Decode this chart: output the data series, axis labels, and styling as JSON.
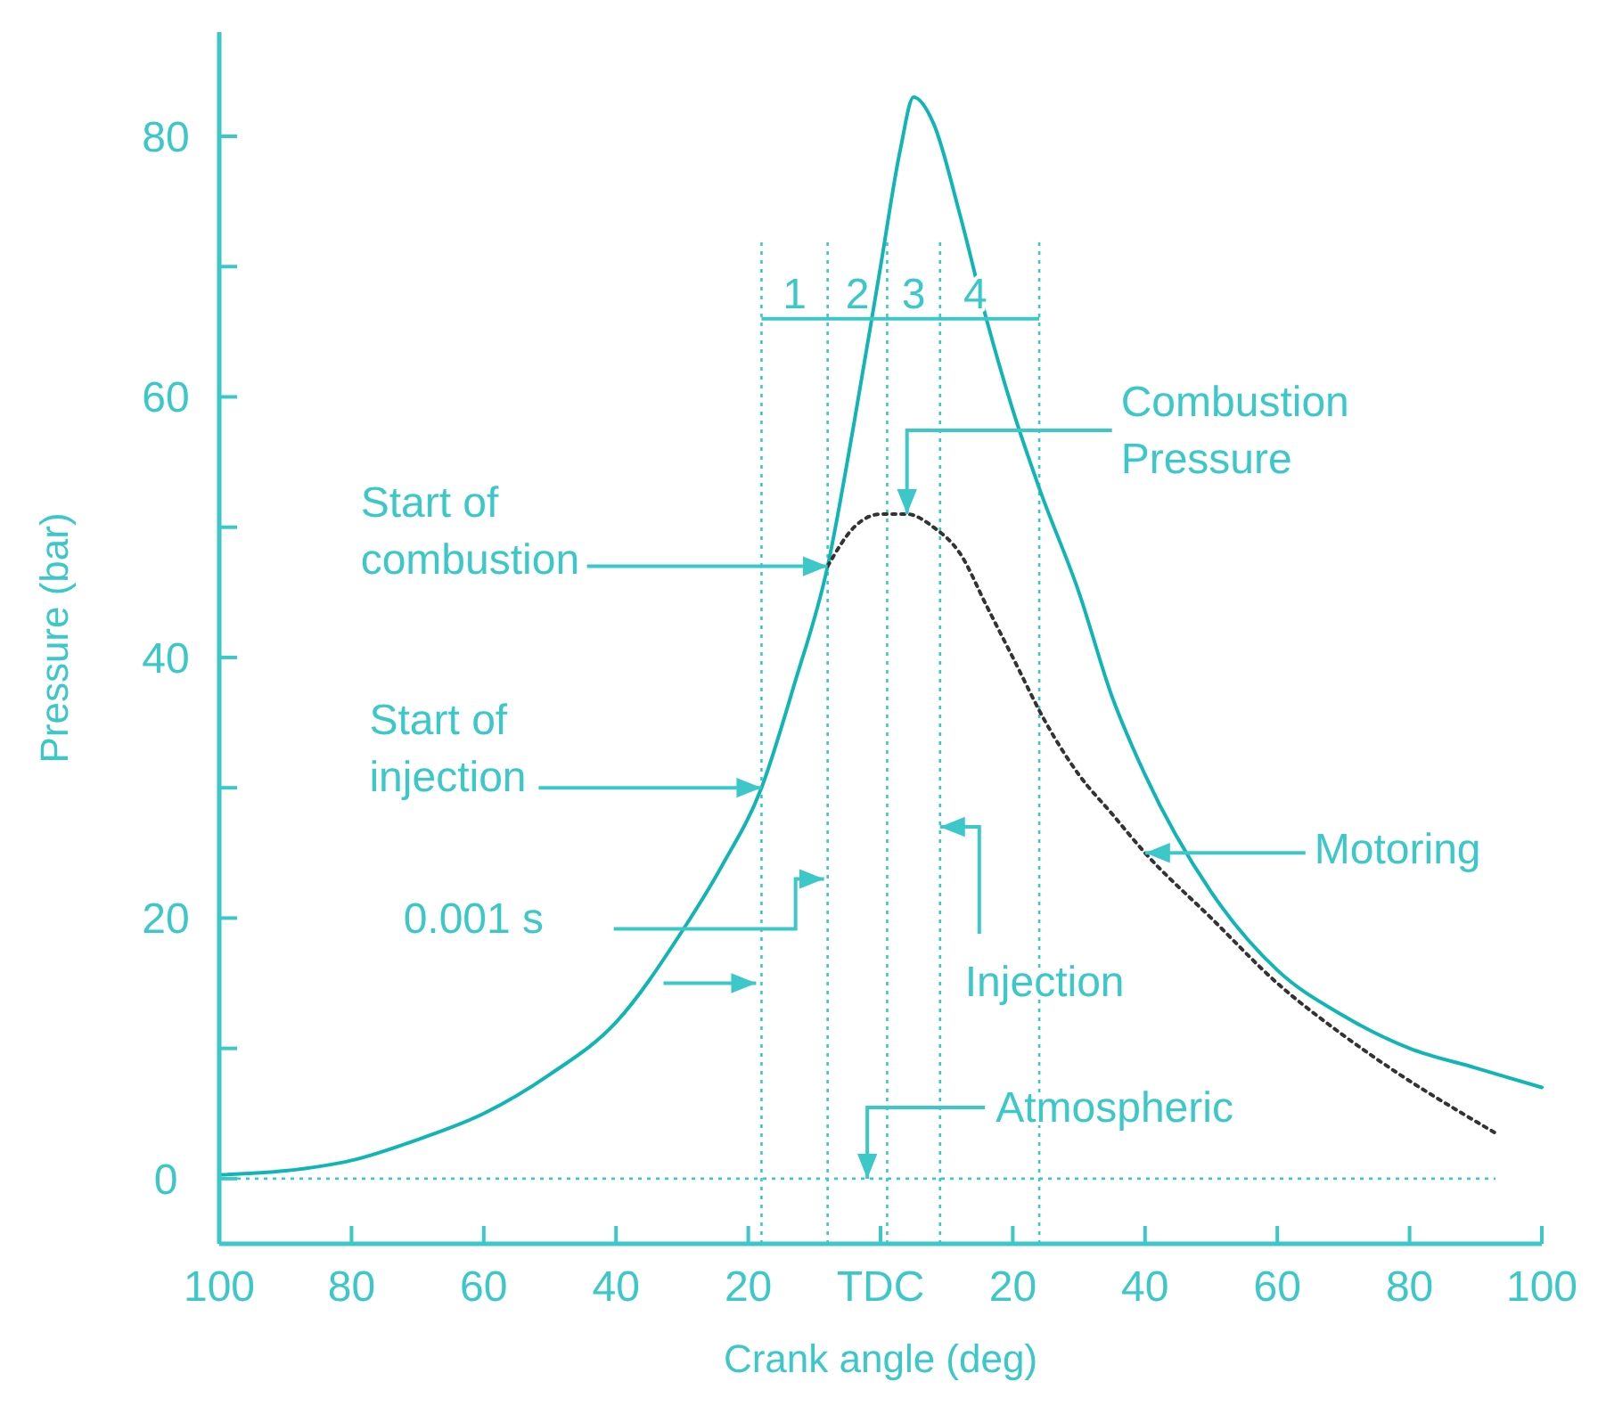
{
  "chart_data": {
    "type": "line",
    "xlabel": "Crank angle (deg)",
    "ylabel": "Pressure (bar)",
    "xlim": [
      -100,
      100
    ],
    "ylim": [
      -5,
      88
    ],
    "xticks": [
      {
        "value": -100,
        "label": "100"
      },
      {
        "value": -80,
        "label": "80"
      },
      {
        "value": -60,
        "label": "60"
      },
      {
        "value": -40,
        "label": "40"
      },
      {
        "value": -20,
        "label": "20"
      },
      {
        "value": 0,
        "label": "TDC"
      },
      {
        "value": 20,
        "label": "20"
      },
      {
        "value": 40,
        "label": "40"
      },
      {
        "value": 60,
        "label": "60"
      },
      {
        "value": 80,
        "label": "80"
      },
      {
        "value": 100,
        "label": "100"
      }
    ],
    "yticks": [
      0,
      {
        "value": 10,
        "label": null
      },
      20,
      {
        "value": 30,
        "label": null
      },
      40,
      {
        "value": 50,
        "label": null
      },
      60,
      {
        "value": 70,
        "label": null
      },
      80
    ],
    "grid": false,
    "marker": "none",
    "series": [
      {
        "color": "#12b5b5",
        "line_style": "solid",
        "x": [
          -100,
          -90,
          -80,
          -70,
          -60,
          -50,
          -40,
          -30,
          -24,
          -18,
          -13,
          -8,
          -4,
          0,
          3,
          5,
          8,
          12,
          16,
          20,
          24,
          30,
          35,
          40,
          50,
          60,
          70,
          80,
          90,
          100
        ],
        "values": [
          0.3,
          0.6,
          1.4,
          3,
          5,
          8,
          12,
          19,
          24,
          30,
          38,
          47,
          58,
          70,
          79,
          83,
          81,
          74,
          66,
          59,
          53,
          45,
          37,
          31,
          22,
          16,
          12.5,
          10,
          8.5,
          7
        ]
      },
      {
        "color": "#333333",
        "line_style": "dotted",
        "x": [
          -8,
          -4,
          0,
          4,
          8,
          12,
          16,
          20,
          25,
          30,
          35,
          40,
          50,
          60,
          70,
          80,
          88,
          93
        ],
        "values": [
          47,
          50,
          51,
          51,
          50,
          48,
          44,
          40,
          35,
          31,
          28,
          25,
          20,
          15,
          11,
          7.5,
          5,
          3.5
        ]
      }
    ],
    "ref_lines": [
      {
        "axis": "x",
        "value": -18,
        "line_style": "dotted"
      },
      {
        "axis": "x",
        "value": -8,
        "line_style": "dotted"
      },
      {
        "axis": "x",
        "value": 1,
        "line_style": "dotted"
      },
      {
        "axis": "x",
        "value": 9,
        "line_style": "dotted"
      },
      {
        "axis": "x",
        "value": 24,
        "line_style": "dotted"
      },
      {
        "axis": "y",
        "value": 0,
        "line_style": "dotted"
      }
    ],
    "annotations": [
      {
        "text": "Start of combustion",
        "x": -8,
        "y": 47
      },
      {
        "text": "Start of injection",
        "x": -18,
        "y": 30
      },
      {
        "text": "Combustion Pressure",
        "x": 4,
        "y": 51
      },
      {
        "text": "Motoring",
        "x": 40,
        "y": 25
      },
      {
        "text": "Injection",
        "x": 9,
        "y": 27
      },
      "0.001 s",
      {
        "text": "Atmospheric",
        "x": -2,
        "y": 0
      },
      {
        "text": "1",
        "x": -18,
        "y": 66
      },
      {
        "text": "2",
        "x": -8,
        "y": 66
      },
      {
        "text": "3",
        "x": 1,
        "y": 66
      },
      {
        "text": "4",
        "x": 9,
        "y": 66
      }
    ]
  }
}
